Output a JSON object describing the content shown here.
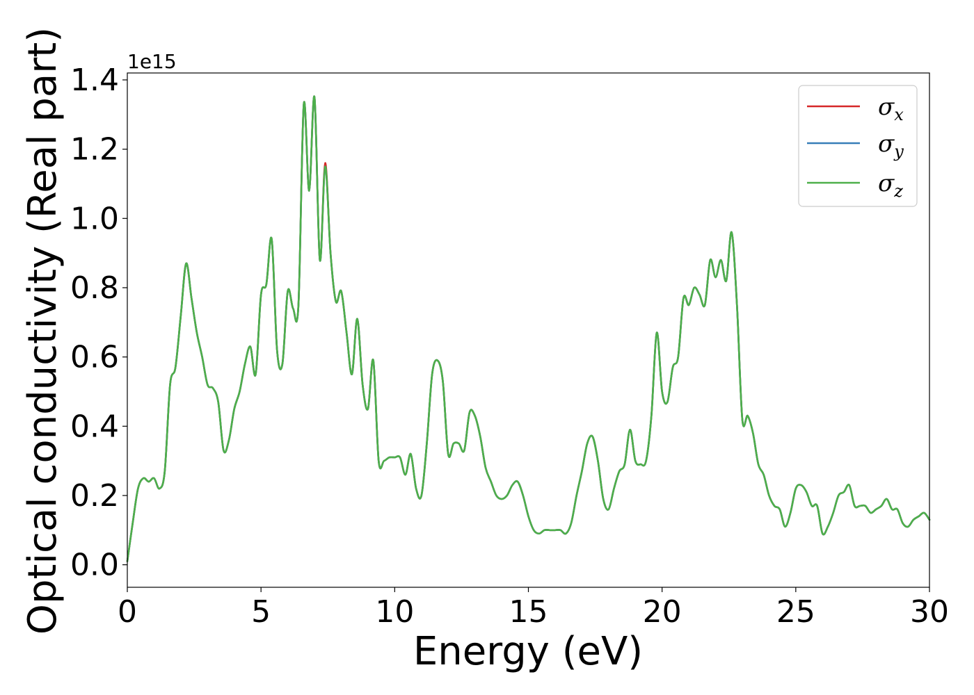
{
  "chart_data": {
    "type": "line",
    "title": "",
    "xlabel": "Energy (eV)",
    "ylabel": "Optical conductivity (Real part)",
    "y_offset_label": "1e15",
    "y_scale": 1000000000000000.0,
    "xlim": [
      0,
      30
    ],
    "ylim": [
      -0.065,
      1.42
    ],
    "xticks": [
      0,
      5,
      10,
      15,
      20,
      25,
      30
    ],
    "xtick_labels": [
      "0",
      "5",
      "10",
      "15",
      "20",
      "25",
      "30"
    ],
    "yticks": [
      0.0,
      0.2,
      0.4,
      0.6,
      0.8,
      1.0,
      1.2,
      1.4
    ],
    "ytick_labels": [
      "0.0",
      "0.2",
      "0.4",
      "0.6",
      "0.8",
      "1.0",
      "1.2",
      "1.4"
    ],
    "grid": false,
    "legend_position": "top-right",
    "x": [
      0,
      0.2,
      0.4,
      0.6,
      0.8,
      1.0,
      1.2,
      1.4,
      1.6,
      1.8,
      2.0,
      2.2,
      2.4,
      2.6,
      2.8,
      3.0,
      3.2,
      3.4,
      3.6,
      3.8,
      4.0,
      4.2,
      4.4,
      4.6,
      4.8,
      5.0,
      5.2,
      5.4,
      5.6,
      5.8,
      6.0,
      6.2,
      6.4,
      6.6,
      6.8,
      7.0,
      7.2,
      7.4,
      7.6,
      7.8,
      8.0,
      8.2,
      8.4,
      8.6,
      8.8,
      9.0,
      9.2,
      9.4,
      9.6,
      9.8,
      10.0,
      10.2,
      10.4,
      10.6,
      10.8,
      11.0,
      11.2,
      11.4,
      11.6,
      11.8,
      12.0,
      12.2,
      12.4,
      12.6,
      12.8,
      13.0,
      13.2,
      13.4,
      13.6,
      13.8,
      14.0,
      14.2,
      14.4,
      14.6,
      14.8,
      15.0,
      15.2,
      15.4,
      15.6,
      15.8,
      16.0,
      16.2,
      16.4,
      16.6,
      16.8,
      17.0,
      17.2,
      17.4,
      17.6,
      17.8,
      18.0,
      18.2,
      18.4,
      18.6,
      18.8,
      19.0,
      19.2,
      19.4,
      19.6,
      19.8,
      20.0,
      20.2,
      20.4,
      20.6,
      20.8,
      21.0,
      21.2,
      21.4,
      21.6,
      21.8,
      22.0,
      22.2,
      22.4,
      22.6,
      22.8,
      23.0,
      23.2,
      23.4,
      23.6,
      23.8,
      24.0,
      24.2,
      24.4,
      24.6,
      24.8,
      25.0,
      25.2,
      25.4,
      25.6,
      25.8,
      26.0,
      26.2,
      26.4,
      26.6,
      26.8,
      27.0,
      27.2,
      27.4,
      27.6,
      27.8,
      28.0,
      28.2,
      28.4,
      28.6,
      28.8,
      29.0,
      29.2,
      29.4,
      29.6,
      29.8,
      30.0
    ],
    "series": [
      {
        "name": "σx",
        "label_base": "σ",
        "label_sub": "x",
        "color": "#d62728",
        "values": [
          0.01,
          0.12,
          0.22,
          0.25,
          0.24,
          0.25,
          0.22,
          0.27,
          0.52,
          0.57,
          0.72,
          0.87,
          0.77,
          0.67,
          0.6,
          0.52,
          0.51,
          0.47,
          0.33,
          0.36,
          0.45,
          0.5,
          0.58,
          0.63,
          0.55,
          0.78,
          0.81,
          0.94,
          0.62,
          0.58,
          0.79,
          0.74,
          0.75,
          1.33,
          1.08,
          1.35,
          0.88,
          1.16,
          0.9,
          0.76,
          0.79,
          0.67,
          0.55,
          0.71,
          0.52,
          0.45,
          0.59,
          0.3,
          0.3,
          0.31,
          0.31,
          0.31,
          0.26,
          0.32,
          0.22,
          0.2,
          0.35,
          0.55,
          0.59,
          0.53,
          0.32,
          0.35,
          0.35,
          0.33,
          0.44,
          0.43,
          0.37,
          0.28,
          0.24,
          0.2,
          0.19,
          0.2,
          0.23,
          0.24,
          0.2,
          0.14,
          0.1,
          0.09,
          0.1,
          0.1,
          0.1,
          0.1,
          0.09,
          0.12,
          0.2,
          0.27,
          0.35,
          0.37,
          0.3,
          0.19,
          0.16,
          0.22,
          0.27,
          0.29,
          0.39,
          0.3,
          0.29,
          0.3,
          0.43,
          0.67,
          0.5,
          0.47,
          0.57,
          0.6,
          0.77,
          0.75,
          0.8,
          0.78,
          0.75,
          0.88,
          0.83,
          0.88,
          0.82,
          0.96,
          0.75,
          0.42,
          0.43,
          0.38,
          0.29,
          0.26,
          0.2,
          0.17,
          0.16,
          0.11,
          0.15,
          0.22,
          0.23,
          0.21,
          0.17,
          0.17,
          0.09,
          0.11,
          0.15,
          0.2,
          0.21,
          0.23,
          0.17,
          0.17,
          0.17,
          0.15,
          0.16,
          0.17,
          0.19,
          0.16,
          0.16,
          0.12,
          0.11,
          0.13,
          0.14,
          0.15,
          0.13
        ]
      },
      {
        "name": "σy",
        "label_base": "σ",
        "label_sub": "y",
        "color": "#377eb8",
        "values": [
          0.01,
          0.12,
          0.22,
          0.25,
          0.24,
          0.25,
          0.22,
          0.27,
          0.52,
          0.57,
          0.72,
          0.87,
          0.77,
          0.67,
          0.6,
          0.52,
          0.51,
          0.47,
          0.33,
          0.36,
          0.45,
          0.5,
          0.58,
          0.63,
          0.55,
          0.78,
          0.81,
          0.94,
          0.62,
          0.58,
          0.79,
          0.74,
          0.75,
          1.33,
          1.08,
          1.35,
          0.88,
          1.15,
          0.9,
          0.76,
          0.79,
          0.67,
          0.55,
          0.71,
          0.52,
          0.45,
          0.59,
          0.3,
          0.3,
          0.31,
          0.31,
          0.31,
          0.26,
          0.32,
          0.22,
          0.2,
          0.35,
          0.55,
          0.59,
          0.53,
          0.32,
          0.35,
          0.35,
          0.33,
          0.44,
          0.43,
          0.37,
          0.28,
          0.24,
          0.2,
          0.19,
          0.2,
          0.23,
          0.24,
          0.2,
          0.14,
          0.1,
          0.09,
          0.1,
          0.1,
          0.1,
          0.1,
          0.09,
          0.12,
          0.2,
          0.27,
          0.35,
          0.37,
          0.3,
          0.19,
          0.16,
          0.22,
          0.27,
          0.29,
          0.39,
          0.3,
          0.29,
          0.3,
          0.43,
          0.67,
          0.5,
          0.47,
          0.57,
          0.6,
          0.77,
          0.75,
          0.8,
          0.78,
          0.75,
          0.88,
          0.83,
          0.88,
          0.82,
          0.96,
          0.75,
          0.42,
          0.43,
          0.38,
          0.29,
          0.26,
          0.2,
          0.17,
          0.16,
          0.11,
          0.15,
          0.22,
          0.23,
          0.21,
          0.17,
          0.17,
          0.09,
          0.11,
          0.15,
          0.2,
          0.21,
          0.23,
          0.17,
          0.17,
          0.17,
          0.15,
          0.16,
          0.17,
          0.19,
          0.16,
          0.16,
          0.12,
          0.11,
          0.13,
          0.14,
          0.15,
          0.13
        ]
      },
      {
        "name": "σz",
        "label_base": "σ",
        "label_sub": "z",
        "color": "#4daf4a",
        "values": [
          0.01,
          0.12,
          0.22,
          0.25,
          0.24,
          0.25,
          0.22,
          0.27,
          0.52,
          0.57,
          0.72,
          0.87,
          0.77,
          0.67,
          0.6,
          0.52,
          0.51,
          0.47,
          0.33,
          0.36,
          0.45,
          0.5,
          0.58,
          0.63,
          0.55,
          0.78,
          0.81,
          0.94,
          0.62,
          0.58,
          0.79,
          0.74,
          0.75,
          1.33,
          1.08,
          1.35,
          0.88,
          1.15,
          0.9,
          0.76,
          0.79,
          0.67,
          0.55,
          0.71,
          0.52,
          0.45,
          0.59,
          0.3,
          0.3,
          0.31,
          0.31,
          0.31,
          0.26,
          0.32,
          0.22,
          0.2,
          0.35,
          0.55,
          0.59,
          0.53,
          0.32,
          0.35,
          0.35,
          0.33,
          0.44,
          0.43,
          0.37,
          0.28,
          0.24,
          0.2,
          0.19,
          0.2,
          0.23,
          0.24,
          0.2,
          0.14,
          0.1,
          0.09,
          0.1,
          0.1,
          0.1,
          0.1,
          0.09,
          0.12,
          0.2,
          0.27,
          0.35,
          0.37,
          0.3,
          0.19,
          0.16,
          0.22,
          0.27,
          0.29,
          0.39,
          0.3,
          0.29,
          0.3,
          0.43,
          0.67,
          0.5,
          0.47,
          0.57,
          0.6,
          0.77,
          0.75,
          0.8,
          0.78,
          0.75,
          0.88,
          0.83,
          0.88,
          0.82,
          0.96,
          0.75,
          0.42,
          0.43,
          0.38,
          0.29,
          0.26,
          0.2,
          0.17,
          0.16,
          0.11,
          0.15,
          0.22,
          0.23,
          0.21,
          0.17,
          0.17,
          0.09,
          0.11,
          0.15,
          0.2,
          0.21,
          0.23,
          0.17,
          0.17,
          0.17,
          0.15,
          0.16,
          0.17,
          0.19,
          0.16,
          0.16,
          0.12,
          0.11,
          0.13,
          0.14,
          0.15,
          0.13
        ]
      }
    ]
  }
}
